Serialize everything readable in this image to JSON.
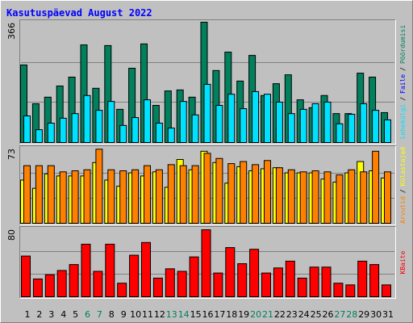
{
  "title": "Kasutuspäevad August 2022",
  "chart_data": [
    {
      "type": "bar",
      "ylim": [
        0,
        366
      ],
      "yticks": [
        366
      ],
      "grid": true,
      "separator": "/",
      "annotation": {
        "text": "Faile",
        "color": "#0000ff"
      },
      "series": [
        {
          "name": "Pöördumisi",
          "color": "#00805c",
          "values": [
            236,
            118,
            138,
            172,
            199,
            297,
            165,
            295,
            101,
            226,
            300,
            113,
            157,
            160,
            138,
            366,
            219,
            275,
            187,
            265,
            143,
            179,
            206,
            130,
            106,
            143,
            88,
            88,
            211,
            199,
            91
          ]
        },
        {
          "name": "Lehekülgi",
          "color": "#00e0ff",
          "values": [
            81,
            39,
            59,
            74,
            88,
            143,
            98,
            125,
            52,
            76,
            130,
            59,
            44,
            125,
            84,
            177,
            113,
            147,
            103,
            155,
            147,
            123,
            88,
            101,
            118,
            123,
            57,
            86,
            118,
            98,
            69
          ]
        }
      ]
    },
    {
      "type": "bar",
      "ylim": [
        0,
        73
      ],
      "yticks": [
        73
      ],
      "grid": true,
      "separator": "/",
      "series": [
        {
          "name": "Külastajad",
          "color": "#ffff00",
          "values": [
            42,
            34,
            48,
            46,
            46,
            46,
            59,
            42,
            36,
            49,
            46,
            50,
            35,
            62,
            52,
            70,
            59,
            39,
            55,
            51,
            53,
            54,
            49,
            49,
            49,
            43,
            40,
            49,
            60,
            51,
            44
          ]
        },
        {
          "name": "Arvutid",
          "color": "#ff8000",
          "values": [
            56,
            56,
            56,
            50,
            51,
            52,
            72,
            52,
            51,
            52,
            56,
            52,
            57,
            56,
            56,
            68,
            63,
            58,
            60,
            57,
            61,
            54,
            52,
            50,
            51,
            50,
            47,
            52,
            50,
            70,
            50
          ]
        }
      ]
    },
    {
      "type": "bar",
      "ylim": [
        0,
        80
      ],
      "yticks": [
        80
      ],
      "grid": true,
      "series": [
        {
          "name": "KBaite",
          "color": "#ff0000",
          "values": [
            48,
            21,
            26,
            31,
            38,
            62,
            30,
            62,
            16,
            49,
            64,
            22,
            33,
            30,
            47,
            79,
            28,
            58,
            39,
            56,
            28,
            34,
            42,
            22,
            35,
            35,
            16,
            14,
            42,
            38,
            14
          ]
        }
      ],
      "categories": [
        "1",
        "2",
        "3",
        "4",
        "5",
        "6",
        "7",
        "8",
        "9",
        "10",
        "11",
        "12",
        "13",
        "14",
        "15",
        "16",
        "17",
        "18",
        "19",
        "20",
        "21",
        "22",
        "23",
        "24",
        "25",
        "26",
        "27",
        "28",
        "29",
        "30",
        "31"
      ],
      "category_colors": [
        "#000000",
        "#000000",
        "#000000",
        "#000000",
        "#000000",
        "#00805c",
        "#00805c",
        "#000000",
        "#000000",
        "#000000",
        "#000000",
        "#000000",
        "#00805c",
        "#00805c",
        "#000000",
        "#000000",
        "#000000",
        "#000000",
        "#000000",
        "#00805c",
        "#00805c",
        "#000000",
        "#000000",
        "#000000",
        "#000000",
        "#000000",
        "#00805c",
        "#00805c",
        "#000000",
        "#000000",
        "#000000"
      ]
    }
  ]
}
